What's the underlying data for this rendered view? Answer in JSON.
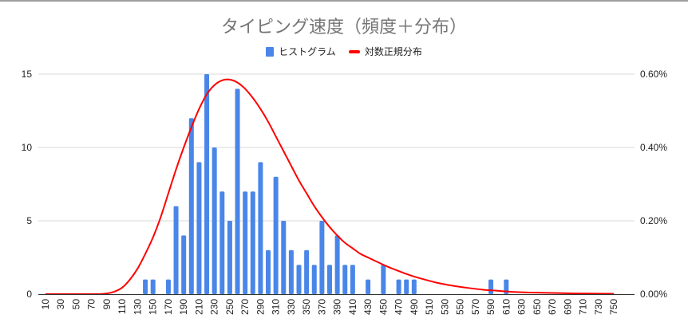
{
  "chart_data": {
    "type": "bar",
    "title": "タイピング速度（頻度＋分布）",
    "legend": [
      {
        "name": "ヒストグラム",
        "kind": "bar",
        "color": "#4a86e8"
      },
      {
        "name": "対数正規分布",
        "kind": "line",
        "color": "#ff0000"
      }
    ],
    "legend_position": "top",
    "x_tick_labels": [
      "10",
      "30",
      "50",
      "70",
      "90",
      "110",
      "130",
      "150",
      "170",
      "190",
      "210",
      "230",
      "250",
      "270",
      "290",
      "310",
      "330",
      "350",
      "370",
      "390",
      "410",
      "430",
      "450",
      "470",
      "490",
      "510",
      "530",
      "550",
      "570",
      "590",
      "610",
      "630",
      "650",
      "670",
      "690",
      "710",
      "730",
      "750"
    ],
    "x_range": [
      10,
      750
    ],
    "x_step": 10,
    "y_left": {
      "range": [
        0,
        15
      ],
      "ticks": [
        0,
        5,
        10,
        15
      ],
      "tick_labels": [
        "0",
        "5",
        "10",
        "15"
      ]
    },
    "y_right": {
      "range": [
        0,
        0.6
      ],
      "ticks": [
        0,
        0.2,
        0.4,
        0.6
      ],
      "tick_labels": [
        "0.00%",
        "0.20%",
        "0.40%",
        "0.60%"
      ],
      "unit": "%"
    },
    "grid": true,
    "series": [
      {
        "name": "ヒストグラム",
        "type": "bar",
        "axis": "left",
        "color": "#4a86e8",
        "points": [
          [
            140,
            1
          ],
          [
            150,
            1
          ],
          [
            170,
            1
          ],
          [
            180,
            6
          ],
          [
            190,
            4
          ],
          [
            200,
            12
          ],
          [
            210,
            9
          ],
          [
            220,
            15
          ],
          [
            230,
            10
          ],
          [
            240,
            7
          ],
          [
            250,
            5
          ],
          [
            260,
            14
          ],
          [
            270,
            7
          ],
          [
            280,
            7
          ],
          [
            290,
            9
          ],
          [
            300,
            3
          ],
          [
            310,
            8
          ],
          [
            320,
            5
          ],
          [
            330,
            3
          ],
          [
            340,
            2
          ],
          [
            350,
            3
          ],
          [
            360,
            2
          ],
          [
            370,
            5
          ],
          [
            380,
            2
          ],
          [
            390,
            4
          ],
          [
            400,
            2
          ],
          [
            410,
            2
          ],
          [
            430,
            1
          ],
          [
            450,
            2
          ],
          [
            470,
            1
          ],
          [
            480,
            1
          ],
          [
            490,
            1
          ],
          [
            590,
            1
          ],
          [
            610,
            1
          ]
        ]
      },
      {
        "name": "対数正規分布",
        "type": "line",
        "axis": "right",
        "color": "#ff0000",
        "points": [
          [
            10,
            0
          ],
          [
            30,
            0
          ],
          [
            50,
            0
          ],
          [
            70,
            0
          ],
          [
            80,
            0
          ],
          [
            90,
            0.002
          ],
          [
            100,
            0.007
          ],
          [
            110,
            0.018
          ],
          [
            120,
            0.04
          ],
          [
            130,
            0.07
          ],
          [
            140,
            0.11
          ],
          [
            150,
            0.155
          ],
          [
            160,
            0.21
          ],
          [
            170,
            0.275
          ],
          [
            180,
            0.34
          ],
          [
            190,
            0.4
          ],
          [
            200,
            0.455
          ],
          [
            210,
            0.505
          ],
          [
            220,
            0.545
          ],
          [
            230,
            0.57
          ],
          [
            240,
            0.583
          ],
          [
            250,
            0.585
          ],
          [
            260,
            0.577
          ],
          [
            270,
            0.56
          ],
          [
            280,
            0.535
          ],
          [
            290,
            0.505
          ],
          [
            300,
            0.47
          ],
          [
            310,
            0.43
          ],
          [
            320,
            0.39
          ],
          [
            330,
            0.35
          ],
          [
            340,
            0.31
          ],
          [
            350,
            0.275
          ],
          [
            360,
            0.24
          ],
          [
            370,
            0.21
          ],
          [
            380,
            0.183
          ],
          [
            390,
            0.16
          ],
          [
            400,
            0.14
          ],
          [
            410,
            0.125
          ],
          [
            420,
            0.11
          ],
          [
            430,
            0.1
          ],
          [
            440,
            0.09
          ],
          [
            450,
            0.08
          ],
          [
            460,
            0.071
          ],
          [
            470,
            0.063
          ],
          [
            480,
            0.055
          ],
          [
            490,
            0.048
          ],
          [
            500,
            0.042
          ],
          [
            520,
            0.031
          ],
          [
            540,
            0.023
          ],
          [
            560,
            0.017
          ],
          [
            580,
            0.012
          ],
          [
            600,
            0.009
          ],
          [
            620,
            0.006
          ],
          [
            650,
            0.004
          ],
          [
            700,
            0.002
          ],
          [
            750,
            0.001
          ]
        ]
      }
    ]
  }
}
